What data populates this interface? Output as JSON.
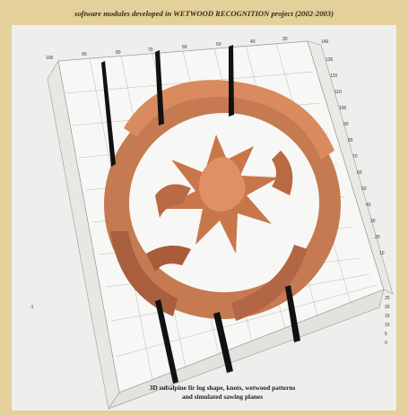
{
  "header": {
    "title": "software modules developed in WETWOOD RECOGNITION project (2002-2003)"
  },
  "figure": {
    "caption_line1": "3D subalpine fir log shape, knots, wetwood patterns",
    "caption_line2": "and simulated sawing planes",
    "left_marker": "-1",
    "top_axis_ticks": [
      "100",
      "90",
      "80",
      "70",
      "60",
      "50",
      "40",
      "30"
    ],
    "right_axis_ticks": [
      "140",
      "130",
      "120",
      "110",
      "100",
      "90",
      "80",
      "70",
      "60",
      "50",
      "40",
      "30",
      "20",
      "10"
    ],
    "bottom_right_ticks": [
      "25",
      "20",
      "15",
      "10",
      "5",
      "0"
    ],
    "surface_color": "#c8784e",
    "plane_color": "#111111",
    "background_color": "#e3d09a"
  }
}
